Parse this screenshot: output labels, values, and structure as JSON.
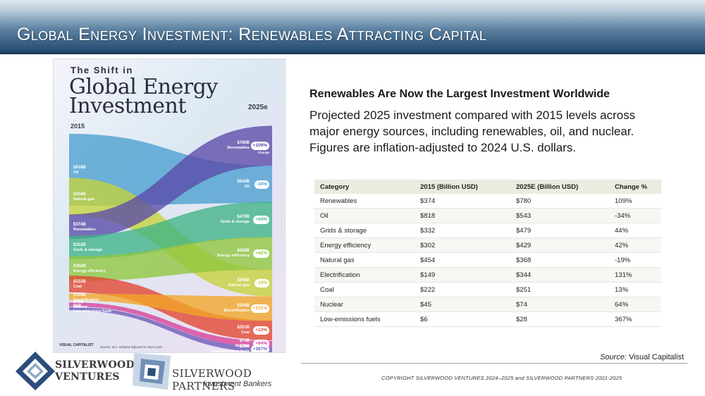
{
  "header": {
    "title": "Global Energy Investment: Renewables Attracting Capital"
  },
  "infographic": {
    "title_small": "The Shift in",
    "title_line1": "Global Energy",
    "title_line2": "Investment",
    "year_left": "2015",
    "year_right": "2025e",
    "left_labels": [
      {
        "value": "$818B",
        "name": "Oil"
      },
      {
        "value": "$454B",
        "name": "Natural gas"
      },
      {
        "value": "$374B",
        "name": "Renewables"
      },
      {
        "value": "$332B",
        "name": "Grids & storage"
      },
      {
        "value": "$302B",
        "name": "Energy efficiency"
      },
      {
        "value": "$222B",
        "name": "Coal"
      },
      {
        "value": "$149B",
        "name": "Electrification"
      },
      {
        "value": "$45B",
        "name": "Nuclear"
      },
      {
        "value": "$6B",
        "name": "Low-emissions fuels"
      }
    ],
    "right_labels": [
      {
        "value": "$780B",
        "name": "Renewables",
        "change": "+109%",
        "note": "Change"
      },
      {
        "value": "$543B",
        "name": "Oil",
        "change": "-34%"
      },
      {
        "value": "$479B",
        "name": "Grids & storage",
        "change": "+44%"
      },
      {
        "value": "$429B",
        "name": "Energy efficiency",
        "change": "+42%"
      },
      {
        "value": "$368B",
        "name": "Natural gas",
        "change": "-19%"
      },
      {
        "value": "$344B",
        "name": "Electrification",
        "change": "+131%"
      },
      {
        "value": "$251B",
        "name": "Coal",
        "change": "+13%"
      },
      {
        "value": "$74B",
        "name": "Nuclear",
        "change": "+64%"
      },
      {
        "value": "$28B",
        "name": "Low-emissions fuels",
        "change": "+367%"
      }
    ],
    "brand": "VISUAL CAPITALIST",
    "source_note": "Source: IEA. Inflation-adjusted to 2024 USD.",
    "colors": {
      "Oil": "#4a9fd0",
      "Natural gas": "#c5d23a",
      "Renewables": "#5a4aa8",
      "Grids & storage": "#3fb487",
      "Energy efficiency": "#8fc63d",
      "Coal": "#e2452f",
      "Electrification": "#f2a527",
      "Nuclear": "#d6409a",
      "Low-emissions fuels": "#6b58b8"
    }
  },
  "content": {
    "headline": "Renewables Are Now the Largest Investment Worldwide",
    "description": "Projected 2025 investment compared with 2015 levels across major energy sources, including renewables, oil, and nuclear. Figures are inflation-adjusted to 2024 U.S. dollars."
  },
  "table": {
    "headers": [
      "Category",
      "2015 (Billion USD)",
      "2025E (Billion USD)",
      "Change %"
    ],
    "rows": [
      [
        "Renewables",
        "$374",
        "$780",
        "109%"
      ],
      [
        "Oil",
        "$818",
        "$543",
        "-34%"
      ],
      [
        "Grids & storage",
        "$332",
        "$479",
        "44%"
      ],
      [
        "Energy efficiency",
        "$302",
        "$429",
        "42%"
      ],
      [
        "Natural gas",
        "$454",
        "$368",
        "-19%"
      ],
      [
        "Electrification",
        "$149",
        "$344",
        "131%"
      ],
      [
        "Coal",
        "$222",
        "$251",
        "13%"
      ],
      [
        "Nuclear",
        "$45",
        "$74",
        "64%"
      ],
      [
        "Low-emissions fuels",
        "$6",
        "$28",
        "367%"
      ]
    ]
  },
  "source": {
    "prefix": "Source:",
    "name": "Visual Capitalist"
  },
  "copyright": "COPYRIGHT SILVERWOOD VENTURES 2024–2025 and SILVERWOOD PARTNERS 2001-2025",
  "logos": {
    "ventures_line1": "SILVERWOOD",
    "ventures_line2": "VENTURES",
    "partners_line1": "SILVERWOOD PARTNERS",
    "partners_line2": "Investment Bankers"
  }
}
